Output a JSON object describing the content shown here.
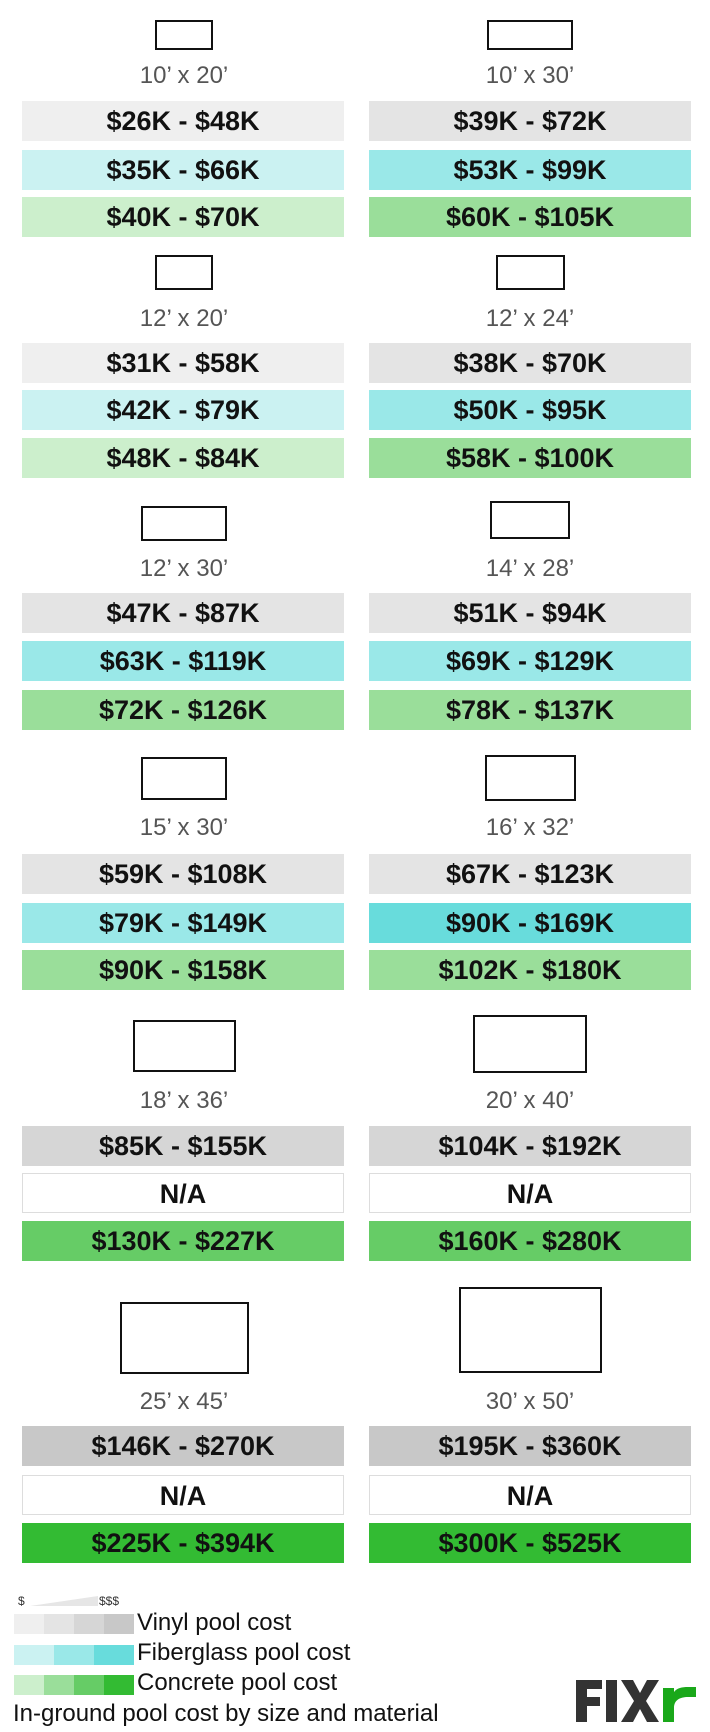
{
  "colors": {
    "vinyl": [
      "#efefef",
      "#e4e4e4",
      "#d6d6d6",
      "#c8c8c8"
    ],
    "fiberglass": [
      "#cbf2f2",
      "#9ae8e8",
      "#68dcdc"
    ],
    "concrete": [
      "#ccefcc",
      "#9ade9a",
      "#66cc66",
      "#33bb33"
    ],
    "logo_dark": "#333333",
    "logo_green": "#1aa81a"
  },
  "pools": [
    {
      "size": "10’ x 20’",
      "vinyl": "$26K - $48K",
      "vinyl_level": 0,
      "fiberglass": "$35K - $66K",
      "fiberglass_level": 0,
      "concrete": "$40K - $70K",
      "concrete_level": 0
    },
    {
      "size": "10’ x 30’",
      "vinyl": "$39K - $72K",
      "vinyl_level": 1,
      "fiberglass": "$53K - $99K",
      "fiberglass_level": 1,
      "concrete": "$60K - $105K",
      "concrete_level": 1
    },
    {
      "size": "12’ x 20’",
      "vinyl": "$31K - $58K",
      "vinyl_level": 0,
      "fiberglass": "$42K - $79K",
      "fiberglass_level": 0,
      "concrete": "$48K - $84K",
      "concrete_level": 0
    },
    {
      "size": "12’ x 24’",
      "vinyl": "$38K - $70K",
      "vinyl_level": 1,
      "fiberglass": "$50K - $95K",
      "fiberglass_level": 1,
      "concrete": "$58K - $100K",
      "concrete_level": 1
    },
    {
      "size": "12’ x 30’",
      "vinyl": "$47K - $87K",
      "vinyl_level": 1,
      "fiberglass": "$63K - $119K",
      "fiberglass_level": 1,
      "concrete": "$72K - $126K",
      "concrete_level": 1
    },
    {
      "size": "14’ x 28’",
      "vinyl": "$51K - $94K",
      "vinyl_level": 1,
      "fiberglass": "$69K - $129K",
      "fiberglass_level": 1,
      "concrete": "$78K - $137K",
      "concrete_level": 1
    },
    {
      "size": "15’ x 30’",
      "vinyl": "$59K - $108K",
      "vinyl_level": 1,
      "fiberglass": "$79K - $149K",
      "fiberglass_level": 1,
      "concrete": "$90K - $158K",
      "concrete_level": 1
    },
    {
      "size": "16’ x 32’",
      "vinyl": "$67K - $123K",
      "vinyl_level": 1,
      "fiberglass": "$90K - $169K",
      "fiberglass_level": 2,
      "concrete": "$102K - $180K",
      "concrete_level": 1
    },
    {
      "size": "18’ x 36’",
      "vinyl": "$85K - $155K",
      "vinyl_level": 2,
      "fiberglass": "N/A",
      "fiberglass_level": null,
      "concrete": "$130K - $227K",
      "concrete_level": 2
    },
    {
      "size": "20’ x 40’",
      "vinyl": "$104K - $192K",
      "vinyl_level": 2,
      "fiberglass": "N/A",
      "fiberglass_level": null,
      "concrete": "$160K - $280K",
      "concrete_level": 2
    },
    {
      "size": "25’ x 45’",
      "vinyl": "$146K - $270K",
      "vinyl_level": 3,
      "fiberglass": "N/A",
      "fiberglass_level": null,
      "concrete": "$225K - $394K",
      "concrete_level": 3
    },
    {
      "size": "30’ x 50’",
      "vinyl": "$195K - $360K",
      "vinyl_level": 3,
      "fiberglass": "N/A",
      "fiberglass_level": null,
      "concrete": "$300K - $525K",
      "concrete_level": 3
    }
  ],
  "legend": {
    "scale_low": "$",
    "scale_high": "$$$",
    "vinyl": "Vinyl pool cost",
    "fiberglass": "Fiberglass pool cost",
    "concrete": "Concrete pool cost"
  },
  "title": "In-ground pool cost by size and material",
  "logo": "FIXR"
}
